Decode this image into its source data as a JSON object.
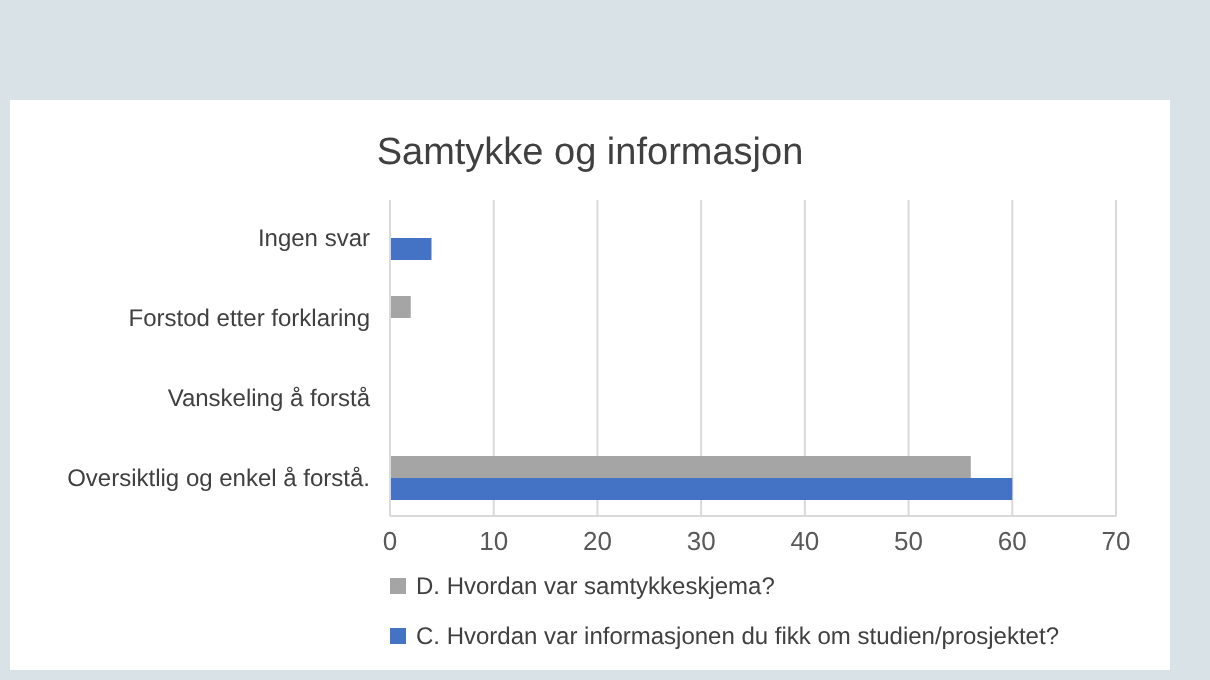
{
  "chart_data": {
    "type": "bar",
    "orientation": "horizontal",
    "title": "Samtykke og informasjon",
    "categories": [
      "Ingen svar",
      "Forstod etter forklaring",
      "Vanskeling å forstå",
      "Oversiktlig og enkel å forstå."
    ],
    "series": [
      {
        "name": "D. Hvordan var samtykkeskjema?",
        "color": "#a5a5a5",
        "values": [
          0,
          2,
          0,
          56
        ]
      },
      {
        "name": "C. Hvordan var informasjonen du fikk om studien/prosjektet?",
        "color": "#4472c4",
        "values": [
          4,
          0,
          0,
          60
        ]
      }
    ],
    "xlim": [
      0,
      70
    ],
    "xticks": [
      0,
      10,
      20,
      30,
      40,
      50,
      60,
      70
    ],
    "grid": "x",
    "legend": "bottom"
  }
}
